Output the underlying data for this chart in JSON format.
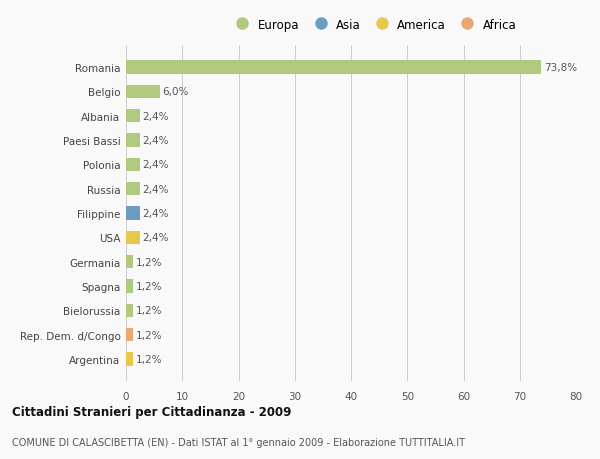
{
  "countries": [
    "Romania",
    "Belgio",
    "Albania",
    "Paesi Bassi",
    "Polonia",
    "Russia",
    "Filippine",
    "USA",
    "Germania",
    "Spagna",
    "Bielorussia",
    "Rep. Dem. d/Congo",
    "Argentina"
  ],
  "values": [
    73.8,
    6.0,
    2.4,
    2.4,
    2.4,
    2.4,
    2.4,
    2.4,
    1.2,
    1.2,
    1.2,
    1.2,
    1.2
  ],
  "labels": [
    "73,8%",
    "6,0%",
    "2,4%",
    "2,4%",
    "2,4%",
    "2,4%",
    "2,4%",
    "2,4%",
    "1,2%",
    "1,2%",
    "1,2%",
    "1,2%",
    "1,2%"
  ],
  "continent": [
    "Europa",
    "Europa",
    "Europa",
    "Europa",
    "Europa",
    "Europa",
    "Asia",
    "America",
    "Europa",
    "Europa",
    "Europa",
    "Africa",
    "America"
  ],
  "colors": {
    "Europa": "#afc97e",
    "Asia": "#6b9dc2",
    "America": "#e8c84a",
    "Africa": "#e8a878"
  },
  "legend_labels": [
    "Europa",
    "Asia",
    "America",
    "Africa"
  ],
  "legend_colors": [
    "#afc97e",
    "#6b9dc2",
    "#e8c84a",
    "#e8a878"
  ],
  "xlim": [
    0,
    80
  ],
  "xticks": [
    0,
    10,
    20,
    30,
    40,
    50,
    60,
    70,
    80
  ],
  "title": "Cittadini Stranieri per Cittadinanza - 2009",
  "subtitle": "COMUNE DI CALASCIBETTA (EN) - Dati ISTAT al 1° gennaio 2009 - Elaborazione TUTTITALIA.IT",
  "bg_color": "#f9f9f9",
  "grid_color": "#cccccc"
}
